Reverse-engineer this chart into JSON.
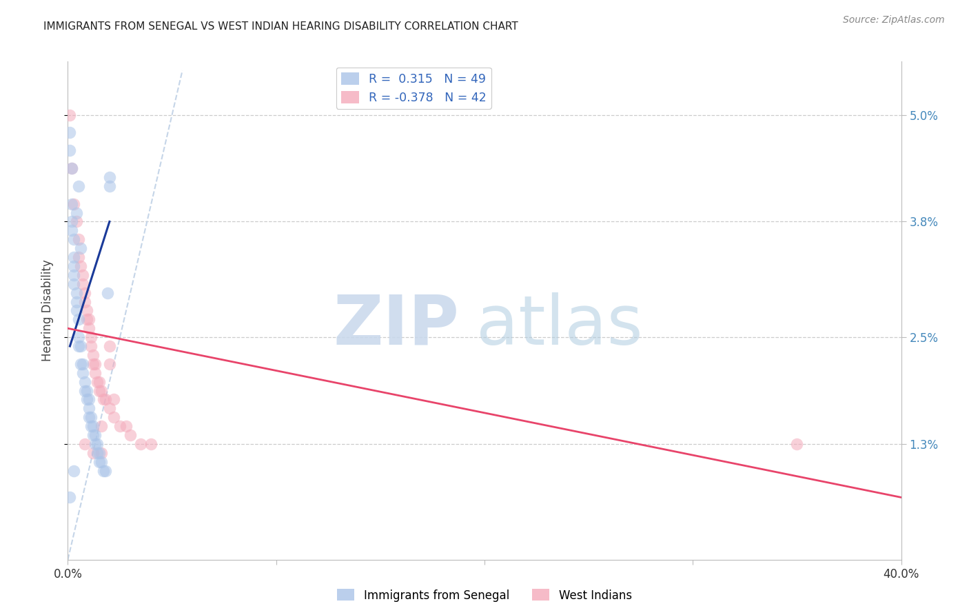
{
  "title": "IMMIGRANTS FROM SENEGAL VS WEST INDIAN HEARING DISABILITY CORRELATION CHART",
  "source": "Source: ZipAtlas.com",
  "ylabel": "Hearing Disability",
  "y_tick_labels": [
    "1.3%",
    "2.5%",
    "3.8%",
    "5.0%"
  ],
  "y_tick_values": [
    0.013,
    0.025,
    0.038,
    0.05
  ],
  "xlim": [
    0.0,
    0.4
  ],
  "ylim": [
    0.0,
    0.056
  ],
  "legend_label1": "Immigrants from Senegal",
  "legend_label2": "West Indians",
  "senegal_color": "#aac4e8",
  "westindian_color": "#f4aabb",
  "senegal_line_color": "#1a3a99",
  "westindian_line_color": "#e8446a",
  "diagonal_color": "#c5d5e8",
  "watermark_zip": "ZIP",
  "watermark_atlas": "atlas",
  "senegal_points_x": [
    0.001,
    0.002,
    0.002,
    0.002,
    0.003,
    0.003,
    0.003,
    0.003,
    0.004,
    0.004,
    0.004,
    0.005,
    0.005,
    0.005,
    0.006,
    0.006,
    0.007,
    0.007,
    0.008,
    0.008,
    0.009,
    0.009,
    0.01,
    0.01,
    0.01,
    0.011,
    0.011,
    0.012,
    0.012,
    0.013,
    0.013,
    0.014,
    0.014,
    0.015,
    0.015,
    0.016,
    0.017,
    0.018,
    0.019,
    0.02,
    0.001,
    0.002,
    0.003,
    0.004,
    0.005,
    0.006,
    0.02,
    0.001,
    0.003
  ],
  "senegal_points_y": [
    0.046,
    0.044,
    0.04,
    0.038,
    0.036,
    0.034,
    0.033,
    0.031,
    0.03,
    0.029,
    0.028,
    0.027,
    0.025,
    0.024,
    0.024,
    0.022,
    0.022,
    0.021,
    0.02,
    0.019,
    0.019,
    0.018,
    0.018,
    0.017,
    0.016,
    0.016,
    0.015,
    0.015,
    0.014,
    0.014,
    0.013,
    0.013,
    0.012,
    0.012,
    0.011,
    0.011,
    0.01,
    0.01,
    0.03,
    0.042,
    0.007,
    0.037,
    0.01,
    0.039,
    0.042,
    0.035,
    0.043,
    0.048,
    0.032
  ],
  "westindian_points_x": [
    0.001,
    0.002,
    0.003,
    0.004,
    0.005,
    0.005,
    0.006,
    0.007,
    0.007,
    0.008,
    0.008,
    0.009,
    0.009,
    0.01,
    0.01,
    0.011,
    0.011,
    0.012,
    0.012,
    0.013,
    0.013,
    0.014,
    0.015,
    0.015,
    0.016,
    0.017,
    0.018,
    0.02,
    0.022,
    0.025,
    0.03,
    0.035,
    0.04,
    0.35,
    0.008,
    0.012,
    0.016,
    0.02,
    0.016,
    0.02,
    0.022,
    0.028
  ],
  "westindian_points_y": [
    0.05,
    0.044,
    0.04,
    0.038,
    0.036,
    0.034,
    0.033,
    0.032,
    0.031,
    0.03,
    0.029,
    0.028,
    0.027,
    0.027,
    0.026,
    0.025,
    0.024,
    0.023,
    0.022,
    0.022,
    0.021,
    0.02,
    0.02,
    0.019,
    0.019,
    0.018,
    0.018,
    0.017,
    0.016,
    0.015,
    0.014,
    0.013,
    0.013,
    0.013,
    0.013,
    0.012,
    0.012,
    0.022,
    0.015,
    0.024,
    0.018,
    0.015
  ],
  "senegal_line_x": [
    0.001,
    0.02
  ],
  "senegal_line_y": [
    0.024,
    0.038
  ],
  "westindian_line_x": [
    0.0,
    0.4
  ],
  "westindian_line_y": [
    0.026,
    0.007
  ]
}
